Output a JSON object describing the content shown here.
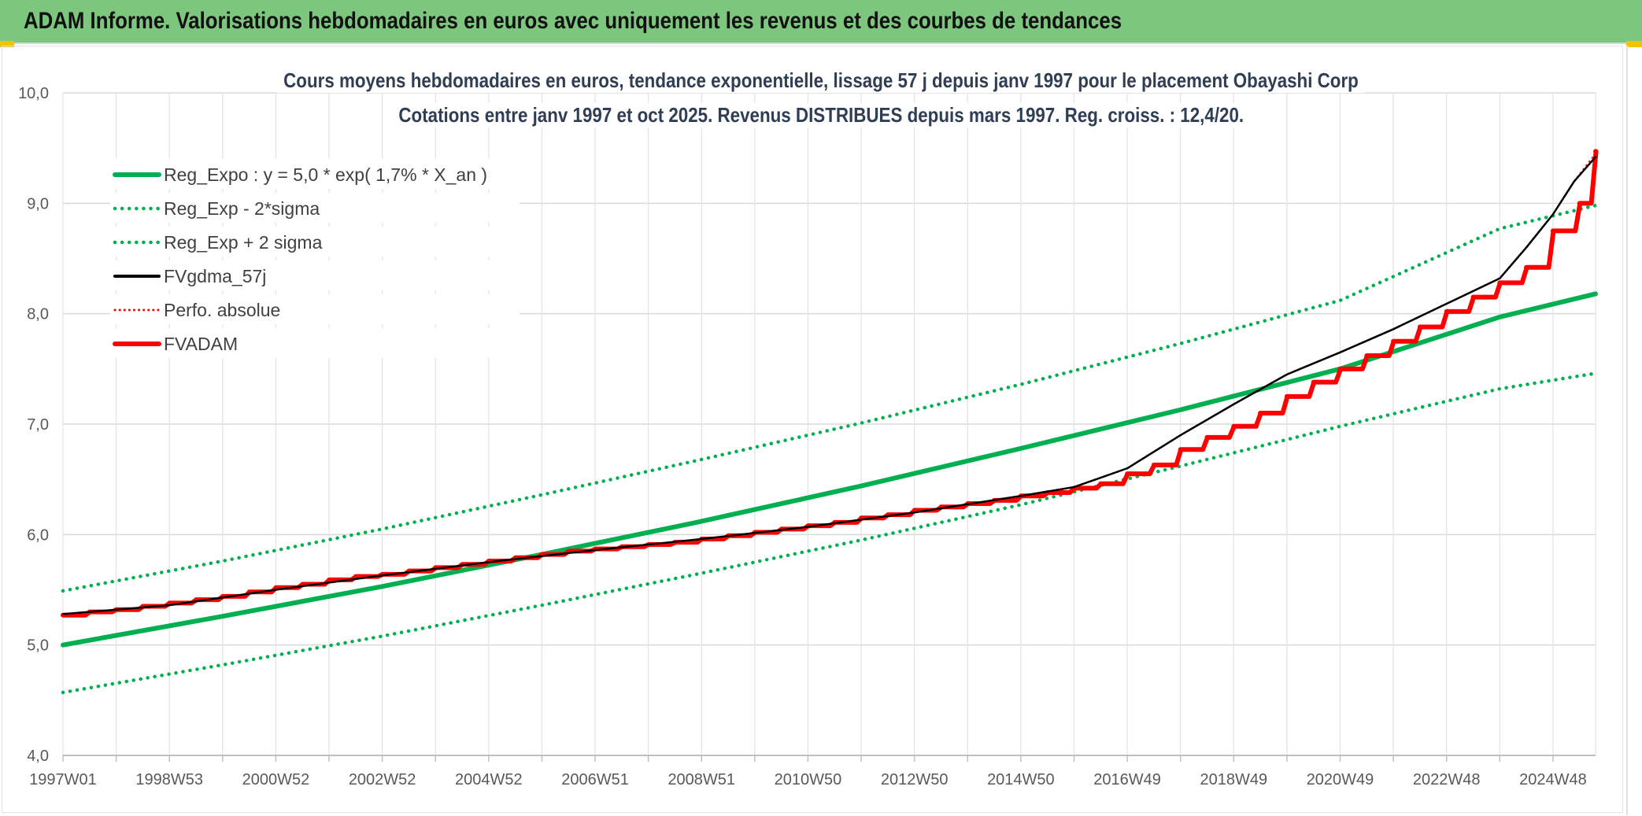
{
  "header": {
    "title": "ADAM Informe. Valorisations hebdomadaires en euros avec uniquement les revenus et des courbes de tendances"
  },
  "colors": {
    "header_bg": "#7dc67e",
    "green": "#00b050",
    "red": "#ff0000",
    "black": "#000000",
    "grid": "#d9d9d9"
  },
  "chart_data": {
    "type": "line",
    "title": "Cours moyens hebdomadaires en euros, tendance exponentielle, lissage 57 j depuis janv 1997 pour le placement Obayashi Corp",
    "subtitle": "Cotations entre janv 1997 et oct 2025. Revenus DISTRIBUES depuis mars 1997. Reg. croiss. : 12,4/20.",
    "xlabel": "",
    "ylabel": "",
    "ylim": [
      4.0,
      10.0
    ],
    "y_ticks": [
      "4,0",
      "5,0",
      "6,0",
      "7,0",
      "8,0",
      "9,0",
      "10,0"
    ],
    "x_range": [
      1997.0,
      2025.8
    ],
    "x_ticks": [
      {
        "label": "1997W01",
        "x": 1997.0
      },
      {
        "label": "1998W53",
        "x": 1999.0
      },
      {
        "label": "2000W52",
        "x": 2001.0
      },
      {
        "label": "2002W52",
        "x": 2003.0
      },
      {
        "label": "2004W52",
        "x": 2005.0
      },
      {
        "label": "2006W51",
        "x": 2007.0
      },
      {
        "label": "2008W51",
        "x": 2009.0
      },
      {
        "label": "2010W50",
        "x": 2011.0
      },
      {
        "label": "2012W50",
        "x": 2013.0
      },
      {
        "label": "2014W50",
        "x": 2015.0
      },
      {
        "label": "2016W49",
        "x": 2017.0
      },
      {
        "label": "2018W49",
        "x": 2019.0
      },
      {
        "label": "2020W49",
        "x": 2021.0
      },
      {
        "label": "2022W48",
        "x": 2023.0
      },
      {
        "label": "2024W48",
        "x": 2025.0
      }
    ],
    "grid": true,
    "legend_position": "top-left",
    "series": [
      {
        "name": "Reg_Expo : y = 5,0 * exp( 1,7% *  X_an )",
        "color": "#00b050",
        "style": "solid",
        "x": [
          1997.0,
          2000.0,
          2003.0,
          2006.0,
          2009.0,
          2012.0,
          2015.0,
          2018.0,
          2021.0,
          2024.0,
          2025.8
        ],
        "values": [
          5.0,
          5.26,
          5.53,
          5.82,
          6.12,
          6.44,
          6.78,
          7.13,
          7.5,
          7.97,
          8.18
        ]
      },
      {
        "name": "Reg_Exp - 2*sigma",
        "color": "#00b050",
        "style": "dotted",
        "x": [
          1997.0,
          2000.0,
          2003.0,
          2006.0,
          2009.0,
          2012.0,
          2015.0,
          2018.0,
          2021.0,
          2024.0,
          2025.8
        ],
        "values": [
          4.57,
          4.82,
          5.08,
          5.36,
          5.65,
          5.95,
          6.27,
          6.62,
          6.98,
          7.32,
          7.46
        ]
      },
      {
        "name": "Reg_Exp + 2 sigma",
        "color": "#00b050",
        "style": "dotted",
        "x": [
          1997.0,
          2000.0,
          2003.0,
          2006.0,
          2009.0,
          2012.0,
          2015.0,
          2018.0,
          2021.0,
          2024.0,
          2025.8
        ],
        "values": [
          5.49,
          5.76,
          6.05,
          6.36,
          6.68,
          7.01,
          7.36,
          7.73,
          8.12,
          8.77,
          8.98
        ]
      },
      {
        "name": "FVgdma_57j",
        "color": "#000000",
        "style": "solid",
        "x": [
          1997.0,
          1999.0,
          2001.0,
          2003.0,
          2005.0,
          2007.0,
          2009.0,
          2011.0,
          2013.0,
          2015.0,
          2016.0,
          2017.0,
          2018.0,
          2019.0,
          2020.0,
          2021.0,
          2022.0,
          2023.0,
          2024.0,
          2024.5,
          2025.0,
          2025.4,
          2025.8
        ],
        "values": [
          5.28,
          5.36,
          5.5,
          5.63,
          5.75,
          5.86,
          5.96,
          6.07,
          6.2,
          6.35,
          6.43,
          6.6,
          6.9,
          7.18,
          7.45,
          7.65,
          7.86,
          8.09,
          8.32,
          8.6,
          8.9,
          9.2,
          9.42
        ]
      },
      {
        "name": "Perfo. absolue",
        "color": "#ff0000",
        "style": "dotted",
        "x": [
          1997.0,
          1999.0,
          2001.0,
          2003.0,
          2005.0,
          2007.0,
          2009.0,
          2011.0,
          2013.0,
          2015.0,
          2016.0,
          2017.0,
          2018.0,
          2019.0,
          2020.0,
          2021.0,
          2022.0,
          2023.0,
          2024.0,
          2024.5,
          2025.0,
          2025.4,
          2025.8
        ],
        "values": [
          5.27,
          5.36,
          5.5,
          5.63,
          5.75,
          5.86,
          5.96,
          6.07,
          6.2,
          6.35,
          6.43,
          6.6,
          6.9,
          7.18,
          7.45,
          7.65,
          7.86,
          8.09,
          8.32,
          8.6,
          8.9,
          9.2,
          9.45
        ]
      },
      {
        "name": "FVADAM",
        "color": "#ff0000",
        "style": "step",
        "x": [
          1997.0,
          1997.5,
          1998.0,
          1998.5,
          1999.0,
          1999.5,
          2000.0,
          2000.5,
          2001.0,
          2001.5,
          2002.0,
          2002.5,
          2003.0,
          2003.5,
          2004.0,
          2004.5,
          2005.0,
          2005.5,
          2006.0,
          2006.5,
          2007.0,
          2007.5,
          2008.0,
          2008.5,
          2009.0,
          2009.5,
          2010.0,
          2010.5,
          2011.0,
          2011.5,
          2012.0,
          2012.5,
          2013.0,
          2013.5,
          2014.0,
          2014.5,
          2015.0,
          2015.5,
          2016.0,
          2016.5,
          2017.0,
          2017.5,
          2018.0,
          2018.5,
          2019.0,
          2019.5,
          2020.0,
          2020.5,
          2021.0,
          2021.5,
          2022.0,
          2022.5,
          2023.0,
          2023.5,
          2024.0,
          2024.5,
          2025.0,
          2025.5,
          2025.8
        ],
        "values": [
          5.27,
          5.3,
          5.32,
          5.35,
          5.38,
          5.41,
          5.44,
          5.48,
          5.52,
          5.55,
          5.59,
          5.62,
          5.64,
          5.67,
          5.7,
          5.73,
          5.76,
          5.79,
          5.82,
          5.85,
          5.87,
          5.89,
          5.91,
          5.93,
          5.96,
          5.99,
          6.02,
          6.05,
          6.08,
          6.11,
          6.15,
          6.18,
          6.22,
          6.25,
          6.28,
          6.31,
          6.35,
          6.38,
          6.42,
          6.46,
          6.55,
          6.63,
          6.77,
          6.88,
          6.98,
          7.1,
          7.25,
          7.38,
          7.5,
          7.62,
          7.75,
          7.88,
          8.02,
          8.15,
          8.28,
          8.42,
          8.75,
          9.0,
          9.47
        ]
      }
    ]
  }
}
